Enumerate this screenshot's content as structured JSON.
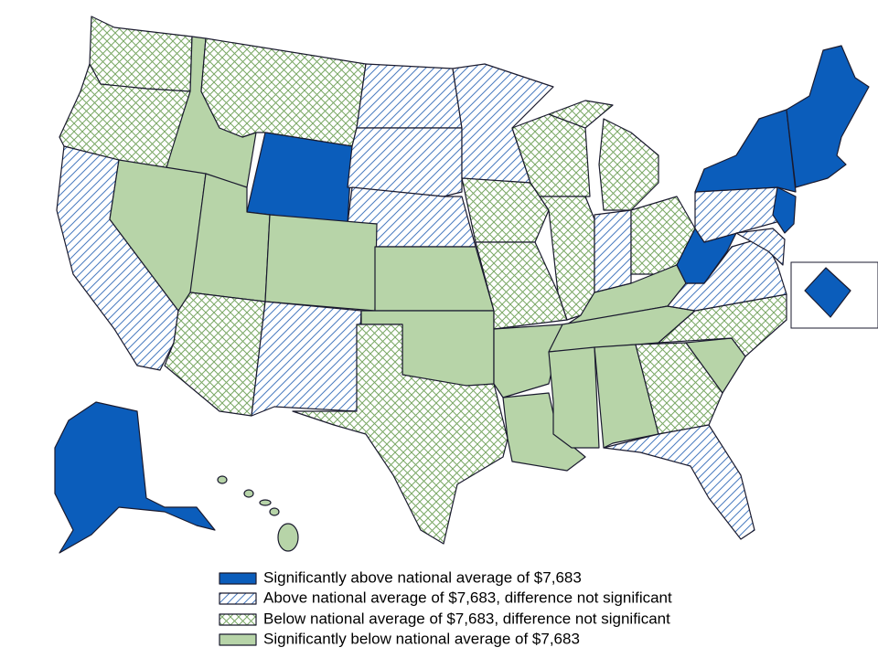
{
  "legend": [
    {
      "label": "Significantly above national average of $7,683"
    },
    {
      "label": "Above national average of $7,683, difference not significant"
    },
    {
      "label": "Below national average of $7,683, difference not significant"
    },
    {
      "label": "Significantly below national average of $7,683"
    }
  ]
}
